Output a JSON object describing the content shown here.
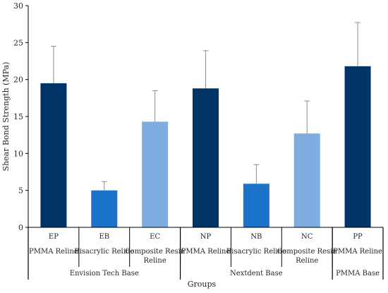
{
  "chart_data": {
    "type": "bar",
    "ylabel": "Shear Bond Strength (MPa)",
    "xlabel": "Groups",
    "ylim": [
      0,
      30
    ],
    "yticks": [
      0,
      5,
      10,
      15,
      20,
      25,
      30
    ],
    "grid": false,
    "colors": {
      "PMMA Reline": "#003366",
      "Bisacrylic Reline": "#1a73c9",
      "Composite Resin Reline": "#7eaee0"
    },
    "categories": [
      {
        "code": "EP",
        "material": "PMMA Reline",
        "value": 19.5,
        "sd": 5.0
      },
      {
        "code": "EB",
        "material": "Bisacrylic Reline",
        "value": 5.0,
        "sd": 1.2
      },
      {
        "code": "EC",
        "material": "Composite Resin Reline",
        "value": 14.3,
        "sd": 4.2
      },
      {
        "code": "NP",
        "material": "PMMA Reline",
        "value": 18.8,
        "sd": 5.1
      },
      {
        "code": "NB",
        "material": "Bisacrylic Reline",
        "value": 5.9,
        "sd": 2.6
      },
      {
        "code": "NC",
        "material": "Composite Resin Reline",
        "value": 12.7,
        "sd": 4.4
      },
      {
        "code": "PP",
        "material": "PMMA Reline",
        "value": 21.8,
        "sd": 5.9
      }
    ],
    "groups": [
      {
        "label": "Envision Tech Base",
        "count": 3
      },
      {
        "label": "Nextdent Base",
        "count": 3
      },
      {
        "label": "PMMA Base",
        "count": 1
      }
    ]
  }
}
